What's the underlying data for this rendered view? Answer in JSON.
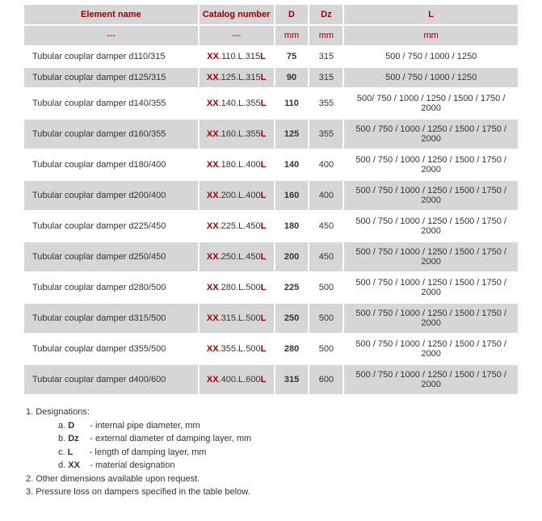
{
  "header": {
    "cols": [
      "Element name",
      "Catalog number",
      "D",
      "Dz",
      "L"
    ],
    "units": [
      "---",
      "---",
      "mm",
      "mm",
      "mm"
    ]
  },
  "rows": [
    {
      "name": "Tubular couplar damper  d110/315",
      "cat_xx": "XX",
      "cat_mid": ".110.L.315",
      "cat_l": "L",
      "d": "75",
      "dz": "315",
      "l": "500 / 750 / 1000 / 1250"
    },
    {
      "name": "Tubular couplar damper  d125/315",
      "cat_xx": "XX",
      "cat_mid": ".125.L.315",
      "cat_l": "L",
      "d": "90",
      "dz": "315",
      "l": "500 / 750 / 1000 / 1250"
    },
    {
      "name": "Tubular couplar damper  d140/355",
      "cat_xx": "XX",
      "cat_mid": ".140.L.355",
      "cat_l": "L",
      "d": "110",
      "dz": "355",
      "l": "500/ 750 / 1000 / 1250 / 1500 / 1750 / 2000"
    },
    {
      "name": "Tubular couplar damper  d160/355",
      "cat_xx": "XX",
      "cat_mid": ".160.L.355",
      "cat_l": "L",
      "d": "125",
      "dz": "355",
      "l": "500 / 750 / 1000 / 1250 / 1500 / 1750 / 2000"
    },
    {
      "name": "Tubular couplar damper  d180/400",
      "cat_xx": "XX",
      "cat_mid": ".180.L.400",
      "cat_l": "L",
      "d": "140",
      "dz": "400",
      "l": "500 / 750 / 1000 / 1250 / 1500 / 1750 / 2000"
    },
    {
      "name": "Tubular  couplar damper  d200/400",
      "cat_xx": "XX",
      "cat_mid": ".200.L.400",
      "cat_l": "L",
      "d": "160",
      "dz": "400",
      "l": "500 / 750 / 1000 / 1250 / 1500 / 1750 / 2000"
    },
    {
      "name": "Tubular  couplar damper  d225/450",
      "cat_xx": "XX",
      "cat_mid": ".225.L.450",
      "cat_l": "L",
      "d": "180",
      "dz": "450",
      "l": "500 / 750 / 1000 / 1250 / 1500 / 1750 / 2000"
    },
    {
      "name": "Tubular couplar  damper  d250/450",
      "cat_xx": "XX",
      "cat_mid": ".250.L.450",
      "cat_l": "L",
      "d": "200",
      "dz": "450",
      "l": "500 / 750 / 1000 / 1250 / 1500 / 1750 / 2000"
    },
    {
      "name": "Tubular couplar  damper  d280/500",
      "cat_xx": "XX",
      "cat_mid": ".280.L.500",
      "cat_l": "L",
      "d": "225",
      "dz": "500",
      "l": "500 / 750 / 1000 / 1250 / 1500 / 1750 / 2000"
    },
    {
      "name": "Tubular  couplar damper  d315/500",
      "cat_xx": "XX",
      "cat_mid": ".315.L.500",
      "cat_l": "L",
      "d": "250",
      "dz": "500",
      "l": "500 / 750 / 1000 / 1250 / 1500 / 1750 / 2000"
    },
    {
      "name": "Tubular  couplar damper  d355/500",
      "cat_xx": "XX",
      "cat_mid": ".355.L.500",
      "cat_l": "L",
      "d": "280",
      "dz": "500",
      "l": "500 / 750 / 1000 / 1250 / 1500 / 1750 / 2000"
    },
    {
      "name": "Tubular couplar  damper  d400/600",
      "cat_xx": "XX",
      "cat_mid": ".400.L.600",
      "cat_l": "L",
      "d": "315",
      "dz": "600",
      "l": "500 / 750 / 1000 / 1250 / 1500 / 1750 / 2000"
    }
  ],
  "notes": {
    "n1": "1. Designations:",
    "subs": [
      {
        "letter": "a.",
        "sym": "D",
        "text": "- internal pipe diameter, mm"
      },
      {
        "letter": "b.",
        "sym": "Dz",
        "text": "- external diameter of damping layer, mm"
      },
      {
        "letter": "c.",
        "sym": "L",
        "text": "- length of damping layer, mm"
      },
      {
        "letter": "d.",
        "sym": "XX",
        "text": "- material designation"
      }
    ],
    "n2": "2. Other dimensions available upon request.",
    "n3": "3. Pressure loss on dampers specified in the table below."
  }
}
